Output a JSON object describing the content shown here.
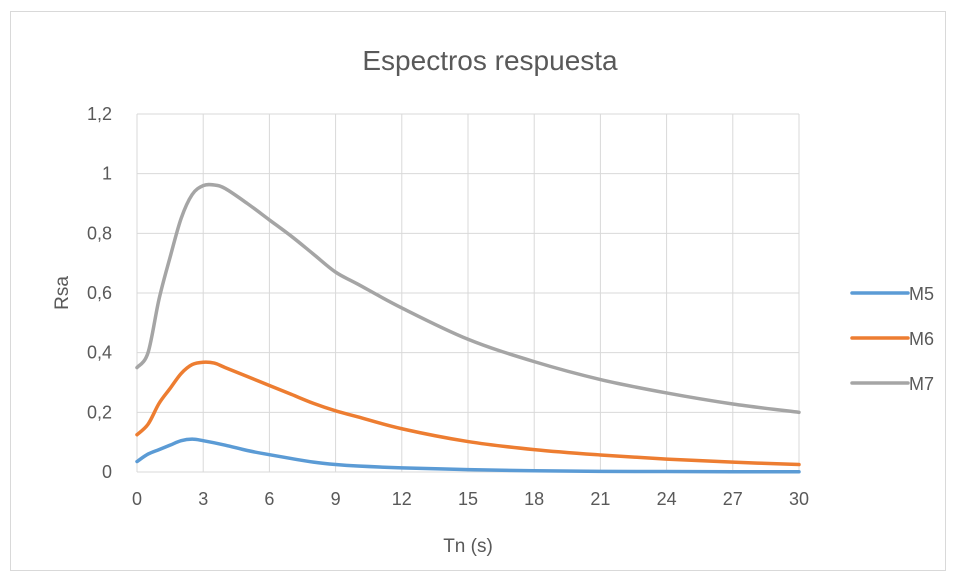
{
  "chart_data": {
    "type": "line",
    "title": "Espectros respuesta",
    "xlabel": "Tn (s)",
    "ylabel": "Rsa",
    "xlim": [
      0,
      30
    ],
    "ylim": [
      0,
      1.2
    ],
    "x_ticks": [
      0,
      3,
      6,
      9,
      12,
      15,
      18,
      21,
      24,
      27,
      30
    ],
    "x_tick_labels": [
      "0",
      "3",
      "6",
      "9",
      "12",
      "15",
      "18",
      "21",
      "24",
      "27",
      "30"
    ],
    "y_ticks": [
      0,
      0.2,
      0.4,
      0.6,
      0.8,
      1.0,
      1.2
    ],
    "y_tick_labels": [
      "0",
      "0,2",
      "0,4",
      "0,6",
      "0,8",
      "1",
      "1,2"
    ],
    "grid": "vertical and horizontal",
    "legend_position": "right",
    "series": [
      {
        "name": "M5",
        "color": "#5b9bd5",
        "points": [
          [
            0,
            0.035
          ],
          [
            0.5,
            0.06
          ],
          [
            1,
            0.075
          ],
          [
            1.5,
            0.09
          ],
          [
            2,
            0.105
          ],
          [
            2.5,
            0.11
          ],
          [
            3,
            0.105
          ],
          [
            4,
            0.09
          ],
          [
            5,
            0.072
          ],
          [
            6,
            0.058
          ],
          [
            7,
            0.045
          ],
          [
            8,
            0.033
          ],
          [
            9,
            0.025
          ],
          [
            10,
            0.02
          ],
          [
            12,
            0.014
          ],
          [
            15,
            0.008
          ],
          [
            18,
            0.004
          ],
          [
            21,
            0.002
          ],
          [
            24,
            0.0015
          ],
          [
            27,
            0.001
          ],
          [
            30,
            0.001
          ]
        ]
      },
      {
        "name": "M6",
        "color": "#ed7d31",
        "points": [
          [
            0,
            0.125
          ],
          [
            0.5,
            0.16
          ],
          [
            1,
            0.23
          ],
          [
            1.5,
            0.28
          ],
          [
            2,
            0.33
          ],
          [
            2.5,
            0.36
          ],
          [
            3,
            0.368
          ],
          [
            3.5,
            0.365
          ],
          [
            4,
            0.35
          ],
          [
            5,
            0.32
          ],
          [
            6,
            0.29
          ],
          [
            7,
            0.26
          ],
          [
            8,
            0.23
          ],
          [
            9,
            0.205
          ],
          [
            10,
            0.185
          ],
          [
            12,
            0.145
          ],
          [
            15,
            0.102
          ],
          [
            18,
            0.075
          ],
          [
            21,
            0.057
          ],
          [
            24,
            0.043
          ],
          [
            27,
            0.033
          ],
          [
            30,
            0.025
          ]
        ]
      },
      {
        "name": "M7",
        "color": "#a5a5a5",
        "points": [
          [
            0,
            0.35
          ],
          [
            0.5,
            0.4
          ],
          [
            1,
            0.58
          ],
          [
            1.5,
            0.72
          ],
          [
            2,
            0.85
          ],
          [
            2.5,
            0.93
          ],
          [
            3,
            0.96
          ],
          [
            3.5,
            0.962
          ],
          [
            4,
            0.95
          ],
          [
            5,
            0.9
          ],
          [
            6,
            0.845
          ],
          [
            7,
            0.79
          ],
          [
            8,
            0.73
          ],
          [
            9,
            0.67
          ],
          [
            10,
            0.63
          ],
          [
            12,
            0.55
          ],
          [
            15,
            0.445
          ],
          [
            18,
            0.37
          ],
          [
            21,
            0.31
          ],
          [
            24,
            0.265
          ],
          [
            27,
            0.228
          ],
          [
            30,
            0.2
          ]
        ]
      }
    ]
  }
}
